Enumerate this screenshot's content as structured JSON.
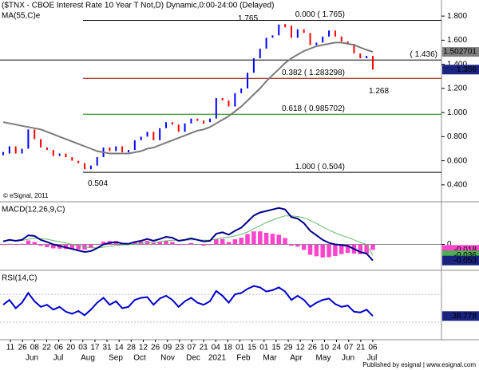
{
  "chart_data": [
    {
      "type": "line",
      "title": "($TNX - CBOE Interest Rate 10 Year T Not,D) Dynamic,0:00-24:00 (Delayed)",
      "copyright": "© eSignal, 2011",
      "ylim": [
        0.28,
        1.92
      ],
      "yticks": [
        {
          "value": 1.8,
          "label": "1.800"
        },
        {
          "value": 1.6,
          "label": "1.600"
        },
        {
          "value": 1.4,
          "label": "1.400"
        },
        {
          "value": 1.2,
          "label": "1.200"
        },
        {
          "value": 1.0,
          "label": "1.000"
        },
        {
          "value": 0.8,
          "label": "0.800"
        },
        {
          "value": 0.6,
          "label": "0.600"
        },
        {
          "value": 0.4,
          "label": "0.400"
        }
      ],
      "series": [
        {
          "style": "updown",
          "up_color": "#0000ff",
          "down_color": "#ff0000",
          "box_color": "#1a237e",
          "last_label": "1.356",
          "values": [
            0.66,
            0.72,
            0.66,
            0.7,
            0.86,
            0.78,
            0.71,
            0.69,
            0.64,
            0.66,
            0.63,
            0.6,
            0.58,
            0.53,
            0.56,
            0.63,
            0.71,
            0.68,
            0.72,
            0.67,
            0.69,
            0.77,
            0.8,
            0.84,
            0.77,
            0.87,
            0.92,
            0.9,
            0.84,
            0.91,
            0.95,
            0.93,
            0.92,
            0.95,
            1.12,
            1.1,
            1.05,
            1.16,
            1.2,
            1.33,
            1.45,
            1.53,
            1.62,
            1.64,
            1.73,
            1.72,
            1.62,
            1.69,
            1.66,
            1.56,
            1.58,
            1.63,
            1.68,
            1.63,
            1.59,
            1.57,
            1.49,
            1.45,
            1.47,
            1.356
          ]
        },
        {
          "name": "MA(55,C)e",
          "style": "line",
          "color": "#7a7a7a",
          "box_color": "#808080",
          "last_label": "1.502701",
          "values": [
            0.92,
            0.91,
            0.9,
            0.89,
            0.88,
            0.87,
            0.86,
            0.84,
            0.82,
            0.8,
            0.78,
            0.76,
            0.74,
            0.72,
            0.7,
            0.68,
            0.67,
            0.66,
            0.66,
            0.66,
            0.66,
            0.67,
            0.68,
            0.7,
            0.71,
            0.73,
            0.75,
            0.77,
            0.79,
            0.81,
            0.83,
            0.85,
            0.86,
            0.88,
            0.91,
            0.94,
            0.97,
            1.01,
            1.05,
            1.1,
            1.15,
            1.2,
            1.26,
            1.31,
            1.36,
            1.41,
            1.45,
            1.48,
            1.51,
            1.53,
            1.55,
            1.56,
            1.57,
            1.58,
            1.58,
            1.57,
            1.56,
            1.54,
            1.52,
            1.502701
          ]
        }
      ],
      "fib_levels": [
        {
          "value": 1.765,
          "label": "0.000 ( 1.765)",
          "color": "#000000",
          "full": false
        },
        {
          "value": 1.436,
          "label": "( 1.436)",
          "color": "#000000",
          "full": true
        },
        {
          "value": 1.283298,
          "label": "0.382 ( 1.283298)",
          "color": "#8b0000",
          "full": false
        },
        {
          "value": 0.985702,
          "label": "0.618 ( 0.985702)",
          "color": "#008000",
          "full": false
        },
        {
          "value": 0.504,
          "label": "1.000 ( 0.504)",
          "color": "#000000",
          "full": false
        }
      ],
      "annotations": [
        {
          "text": "1.765",
          "value": 1.765
        },
        {
          "text": "0.504",
          "value": 0.504
        },
        {
          "text": "1.268",
          "value": 1.268
        }
      ]
    },
    {
      "type": "line",
      "title": "MACD(12,26,9,C)",
      "ylim": [
        -0.08,
        0.13
      ],
      "yticks": [
        0
      ],
      "series": [
        {
          "style": "histogram",
          "color": "#ff44cc",
          "box_color": "#ff44cc",
          "last_label": "-0.018",
          "values": [
            -0.002,
            0.002,
            -0.001,
            0.002,
            0.013,
            0.008,
            -0.004,
            -0.009,
            -0.013,
            -0.014,
            -0.015,
            -0.015,
            -0.016,
            -0.017,
            -0.011,
            -0.001,
            0.009,
            0.011,
            0.011,
            0.005,
            0.003,
            0.007,
            0.009,
            0.012,
            0.005,
            0.009,
            0.013,
            0.008,
            -0.002,
            0.001,
            0.005,
            0,
            -0.004,
            -0.002,
            0.017,
            0.018,
            0.008,
            0.017,
            0.022,
            0.034,
            0.043,
            0.043,
            0.038,
            0.035,
            0.032,
            0.021,
            -0.004,
            -0.007,
            -0.018,
            -0.034,
            -0.039,
            -0.043,
            -0.042,
            -0.038,
            -0.032,
            -0.028,
            -0.03,
            -0.032,
            -0.03,
            -0.018
          ]
        },
        {
          "style": "line",
          "color": "#66bb66",
          "box_color": "#4caf50",
          "last_label": "-0.036",
          "values": [
            0.012,
            0.013,
            0.013,
            0.013,
            0.017,
            0.02,
            0.019,
            0.017,
            0.013,
            0.009,
            0.005,
            0,
            -0.004,
            -0.008,
            -0.011,
            -0.011,
            -0.009,
            -0.006,
            -0.003,
            -0.002,
            -0.001,
            0.001,
            0.003,
            0.006,
            0.007,
            0.009,
            0.012,
            0.014,
            0.014,
            0.014,
            0.015,
            0.015,
            0.014,
            0.014,
            0.018,
            0.022,
            0.024,
            0.028,
            0.033,
            0.041,
            0.052,
            0.062,
            0.072,
            0.08,
            0.088,
            0.094,
            0.094,
            0.092,
            0.088,
            0.079,
            0.069,
            0.058,
            0.047,
            0.038,
            0.03,
            0.023,
            0.015,
            0.007,
            0,
            -0.036
          ]
        },
        {
          "style": "line",
          "color": "#00008b",
          "box_color": "#1a237e",
          "last_label": "-0.053",
          "values": [
            0.01,
            0.015,
            0.012,
            0.015,
            0.03,
            0.028,
            0.015,
            0.008,
            0,
            -0.005,
            -0.01,
            -0.015,
            -0.02,
            -0.025,
            -0.022,
            -0.012,
            0,
            0.005,
            0.008,
            0.003,
            0.002,
            0.008,
            0.012,
            0.018,
            0.012,
            0.018,
            0.025,
            0.022,
            0.012,
            0.015,
            0.02,
            0.015,
            0.01,
            0.012,
            0.035,
            0.04,
            0.032,
            0.045,
            0.055,
            0.075,
            0.095,
            0.105,
            0.11,
            0.115,
            0.12,
            0.115,
            0.09,
            0.085,
            0.07,
            0.045,
            0.03,
            0.015,
            0.005,
            0,
            -0.002,
            -0.005,
            -0.015,
            -0.025,
            -0.03,
            -0.053
          ]
        }
      ]
    },
    {
      "type": "line",
      "title": "RSI(14,C)",
      "ylim": [
        7,
        100
      ],
      "guides": [
        70,
        30
      ],
      "series": [
        {
          "style": "line",
          "color": "#0000cc",
          "box_color": "#1a237e",
          "last_label": "38.778",
          "values": [
            55,
            62,
            50,
            58,
            72,
            60,
            52,
            55,
            48,
            52,
            45,
            42,
            46,
            40,
            48,
            58,
            65,
            55,
            60,
            50,
            52,
            62,
            65,
            66,
            55,
            64,
            68,
            62,
            52,
            60,
            65,
            58,
            55,
            60,
            75,
            68,
            58,
            70,
            72,
            78,
            82,
            80,
            74,
            76,
            80,
            74,
            62,
            68,
            62,
            52,
            58,
            62,
            64,
            56,
            52,
            54,
            45,
            44,
            48,
            38.778
          ]
        }
      ]
    }
  ],
  "x_axis": {
    "day_labels": [
      "11",
      "26",
      "08",
      "22",
      "06",
      "20",
      "03",
      "17",
      "31",
      "14",
      "28",
      "12",
      "26",
      "09",
      "23",
      "07",
      "21",
      "04",
      "18",
      "01",
      "15",
      "01",
      "15",
      "29",
      "12",
      "26",
      "10",
      "24",
      "07",
      "21",
      "06"
    ],
    "month_labels": [
      "Jun",
      "Jul",
      "Aug",
      "Sep",
      "Oct",
      "Nov",
      "Dec",
      "2021",
      "Feb",
      "Mar",
      "Apr",
      "May",
      "Jun",
      "Jul"
    ]
  },
  "footer": "Published by esignal | www.esignal.com"
}
